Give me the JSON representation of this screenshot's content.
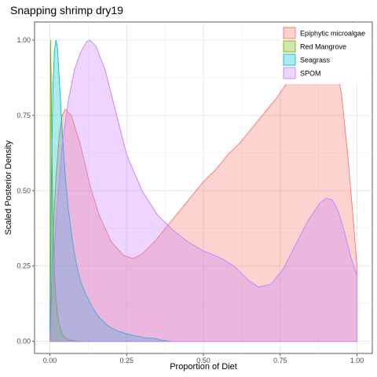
{
  "chart_data": {
    "type": "area",
    "title": "Snapping shrimp dry19",
    "xlabel": "Proportion of Diet",
    "ylabel": "Scaled Posterior Density",
    "xlim": [
      -0.05,
      1.05
    ],
    "ylim": [
      -0.04,
      1.06
    ],
    "x_ticks": [
      0.0,
      0.25,
      0.5,
      0.75,
      1.0
    ],
    "x_tick_labels": [
      "0.00",
      "0.25",
      "0.50",
      "0.75",
      "1.00"
    ],
    "y_ticks": [
      0.0,
      0.25,
      0.5,
      0.75,
      1.0
    ],
    "y_tick_labels": [
      "0.00",
      "0.25",
      "0.50",
      "0.75",
      "1.00"
    ],
    "grid": true,
    "legend_position": "top-right",
    "series": [
      {
        "name": "Epiphytic microalgae",
        "fill": "#F8766D",
        "x": [
          0.0,
          0.01,
          0.02,
          0.03,
          0.04,
          0.05,
          0.07,
          0.1,
          0.13,
          0.16,
          0.2,
          0.24,
          0.27,
          0.3,
          0.34,
          0.38,
          0.42,
          0.46,
          0.5,
          0.54,
          0.58,
          0.62,
          0.66,
          0.7,
          0.74,
          0.78,
          0.82,
          0.86,
          0.89,
          0.92,
          0.95,
          0.97,
          0.99,
          1.0
        ],
        "y": [
          0.0,
          0.35,
          0.55,
          0.68,
          0.75,
          0.77,
          0.75,
          0.65,
          0.52,
          0.42,
          0.33,
          0.285,
          0.275,
          0.29,
          0.33,
          0.38,
          0.43,
          0.48,
          0.53,
          0.57,
          0.62,
          0.66,
          0.71,
          0.76,
          0.81,
          0.87,
          0.93,
          0.98,
          1.0,
          0.97,
          0.82,
          0.62,
          0.38,
          0.25
        ]
      },
      {
        "name": "Red Mangrove",
        "fill": "#7CAE00",
        "x": [
          0.0,
          0.002,
          0.004,
          0.006,
          0.008,
          0.01,
          0.013,
          0.016,
          0.02,
          0.025,
          0.03,
          0.035,
          0.04,
          0.05,
          0.06,
          0.08,
          0.1
        ],
        "y": [
          0.0,
          1.0,
          0.88,
          0.68,
          0.52,
          0.4,
          0.28,
          0.2,
          0.14,
          0.09,
          0.06,
          0.04,
          0.025,
          0.012,
          0.006,
          0.002,
          0.0
        ]
      },
      {
        "name": "Seagrass",
        "fill": "#00BFC4",
        "x": [
          0.0,
          0.005,
          0.01,
          0.015,
          0.02,
          0.025,
          0.03,
          0.04,
          0.05,
          0.06,
          0.07,
          0.08,
          0.09,
          0.1,
          0.12,
          0.14,
          0.16,
          0.18,
          0.2,
          0.22,
          0.25,
          0.28,
          0.31,
          0.34,
          0.36,
          0.38,
          0.4
        ],
        "y": [
          0.0,
          0.55,
          0.85,
          0.97,
          1.0,
          0.97,
          0.88,
          0.7,
          0.55,
          0.44,
          0.36,
          0.29,
          0.24,
          0.2,
          0.15,
          0.11,
          0.08,
          0.06,
          0.045,
          0.035,
          0.025,
          0.018,
          0.012,
          0.01,
          0.005,
          0.002,
          0.0
        ]
      },
      {
        "name": "SPOM",
        "fill": "#C77CFF",
        "x": [
          0.0,
          0.02,
          0.04,
          0.06,
          0.08,
          0.1,
          0.12,
          0.13,
          0.15,
          0.18,
          0.21,
          0.25,
          0.3,
          0.35,
          0.4,
          0.45,
          0.5,
          0.55,
          0.6,
          0.65,
          0.68,
          0.72,
          0.76,
          0.8,
          0.84,
          0.88,
          0.9,
          0.92,
          0.94,
          0.96,
          0.98,
          1.0
        ],
        "y": [
          0.0,
          0.4,
          0.65,
          0.8,
          0.9,
          0.96,
          0.995,
          1.0,
          0.98,
          0.9,
          0.78,
          0.62,
          0.5,
          0.42,
          0.37,
          0.33,
          0.3,
          0.28,
          0.25,
          0.2,
          0.18,
          0.19,
          0.24,
          0.32,
          0.4,
          0.46,
          0.475,
          0.47,
          0.43,
          0.36,
          0.28,
          0.22
        ]
      }
    ]
  }
}
